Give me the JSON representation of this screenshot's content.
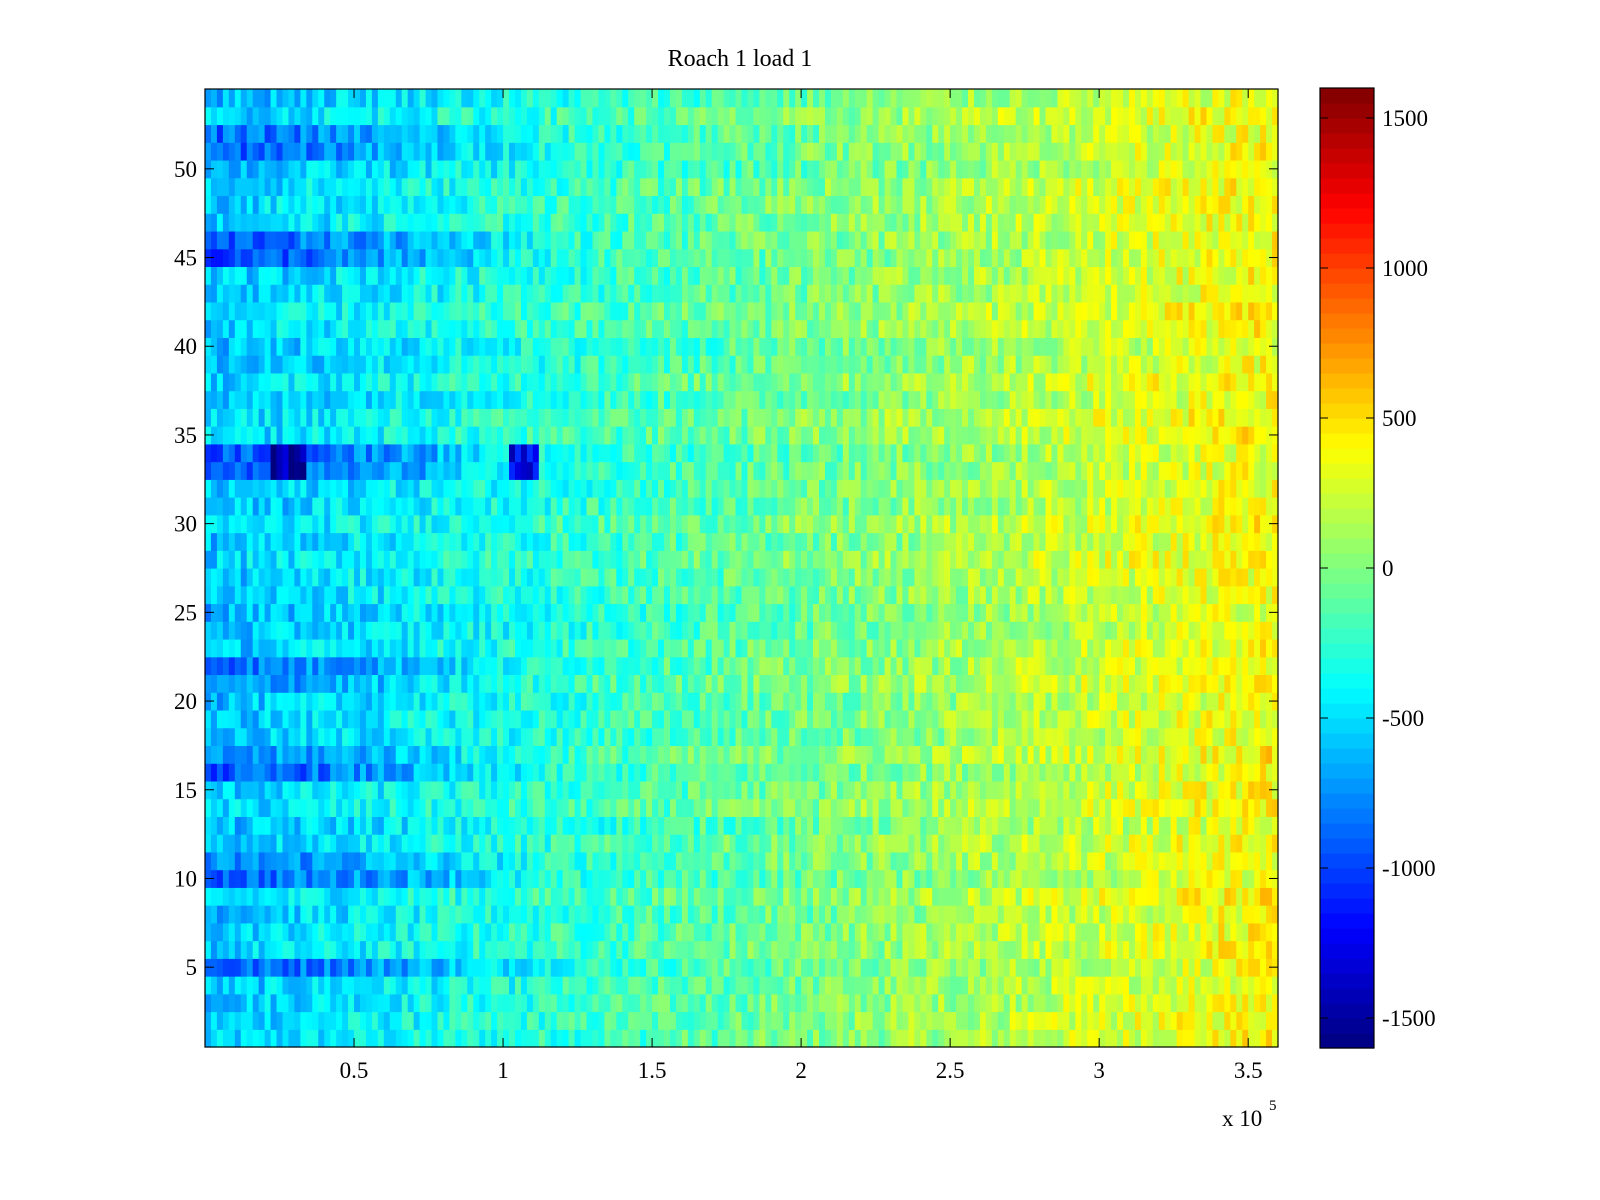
{
  "chart_data": {
    "type": "heatmap",
    "title": "Roach 1 load 1",
    "xlabel": "",
    "ylabel": "",
    "x_multiplier_label": "x 10",
    "x_multiplier_exponent": "5",
    "xlim": [
      0,
      3.6
    ],
    "ylim": [
      0.5,
      54.5
    ],
    "n_rows": 54,
    "x_ticks": [
      0.5,
      1,
      1.5,
      2,
      2.5,
      3,
      3.5
    ],
    "x_tick_labels": [
      "0.5",
      "1",
      "1.5",
      "2",
      "2.5",
      "3",
      "3.5"
    ],
    "y_ticks": [
      5,
      10,
      15,
      20,
      25,
      30,
      35,
      40,
      45,
      50
    ],
    "y_tick_labels": [
      "5",
      "10",
      "15",
      "20",
      "25",
      "30",
      "35",
      "40",
      "45",
      "50"
    ],
    "colorbar": {
      "colormap": "jet",
      "clim": [
        -1600,
        1600
      ],
      "ticks": [
        -1500,
        -1000,
        -500,
        0,
        500,
        1000,
        1500
      ],
      "tick_labels": [
        "-1500",
        "-1000",
        "-500",
        "0",
        "500",
        "1000",
        "1500"
      ]
    },
    "trend": {
      "description": "values rise from about -600 at left to about +400 at right",
      "start_value": -600,
      "end_value": 400
    },
    "low_value_rows": [
      {
        "row": 5,
        "value": -900
      },
      {
        "row": 10,
        "value": -850
      },
      {
        "row": 11,
        "value": -800
      },
      {
        "row": 16,
        "value": -950
      },
      {
        "row": 17,
        "value": -850
      },
      {
        "row": 21,
        "value": -800
      },
      {
        "row": 22,
        "value": -850
      },
      {
        "row": 33,
        "value": -950
      },
      {
        "row": 34,
        "value": -900
      },
      {
        "row": 45,
        "value": -1000
      },
      {
        "row": 46,
        "value": -950
      },
      {
        "row": 51,
        "value": -900
      },
      {
        "row": 52,
        "value": -850
      }
    ],
    "hotspots": [
      {
        "x_start": 0.22,
        "x_end": 0.34,
        "row_start": 33,
        "row_end": 34,
        "value": -1450
      },
      {
        "x_start": 1.02,
        "x_end": 1.13,
        "row_start": 33,
        "row_end": 34,
        "value": -1200
      }
    ]
  }
}
